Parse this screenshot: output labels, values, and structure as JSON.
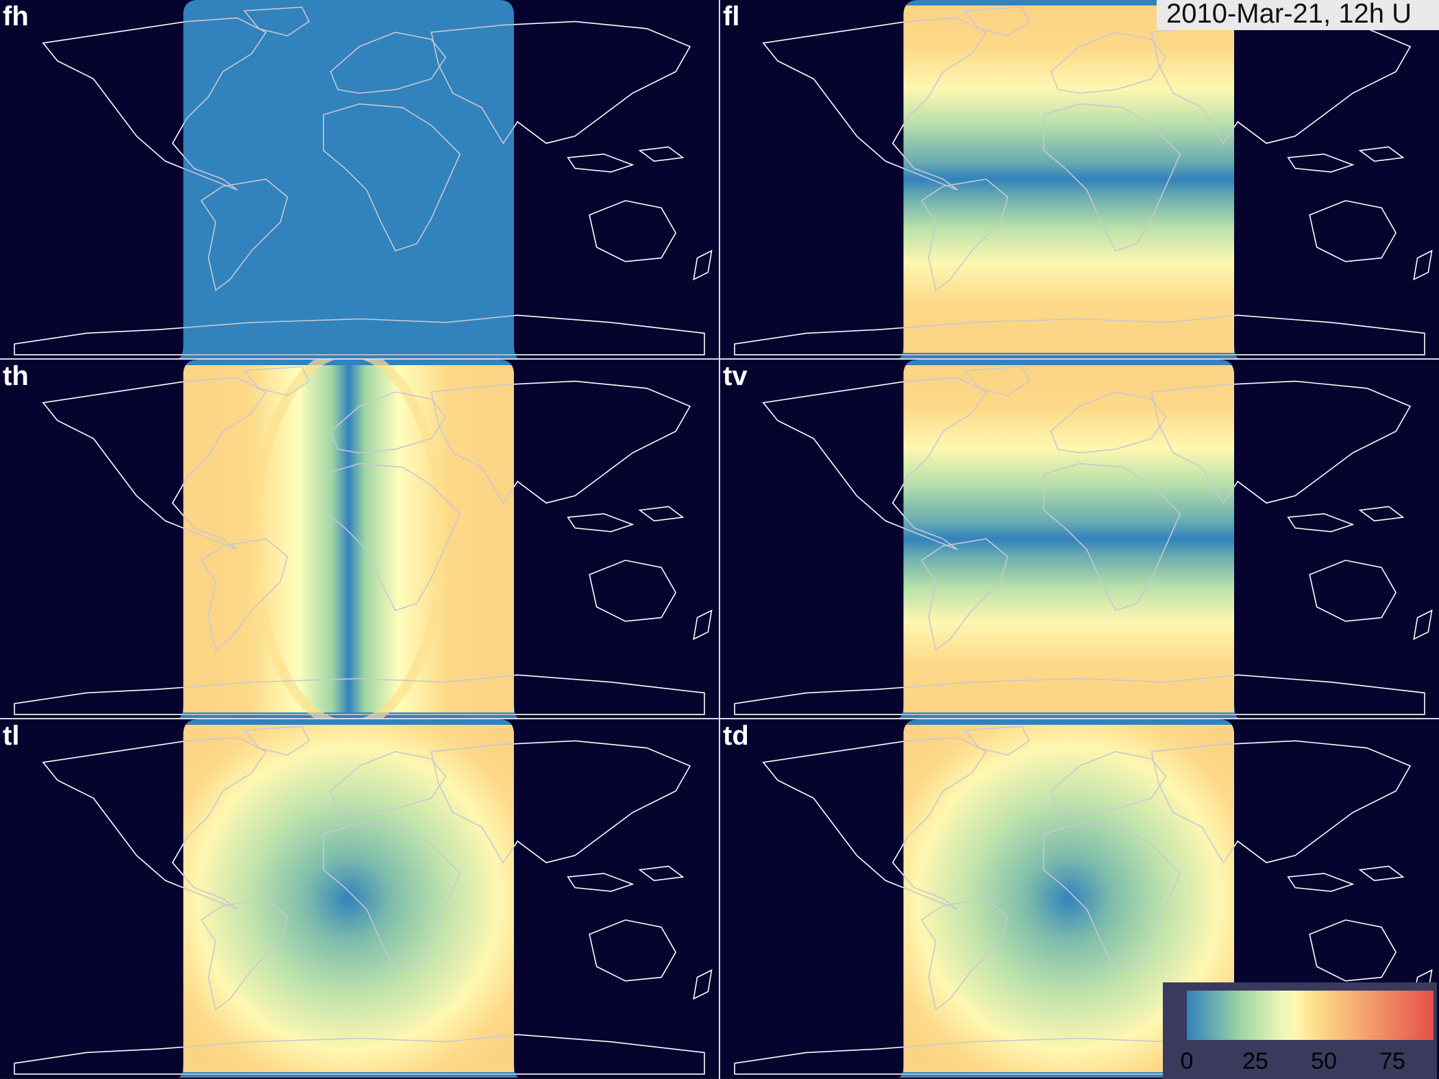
{
  "timestamp": "2010-Mar-21, 12h U",
  "colors": {
    "night": "#06042f",
    "coastline_night": "#ffffff",
    "coastline_day": "#c8c8d2",
    "low": "#3282bd",
    "mid_low": "#9fd6a3",
    "mid": "#fefebd",
    "mid_high": "#fee08b",
    "high": "#e4504a"
  },
  "panels": [
    {
      "id": "fh",
      "label": "fh",
      "field": "uniform"
    },
    {
      "id": "fl",
      "label": "fl",
      "field": "latitude"
    },
    {
      "id": "th",
      "label": "th",
      "field": "meridian"
    },
    {
      "id": "tv",
      "label": "tv",
      "field": "latitude"
    },
    {
      "id": "tl",
      "label": "tl",
      "field": "subsolar"
    },
    {
      "id": "td",
      "label": "td",
      "field": "subsolar"
    }
  ],
  "legend": {
    "ticks": [
      "0",
      "25",
      "50",
      "75"
    ],
    "tick_values": [
      0,
      25,
      50,
      75
    ],
    "range": [
      0,
      90
    ]
  }
}
